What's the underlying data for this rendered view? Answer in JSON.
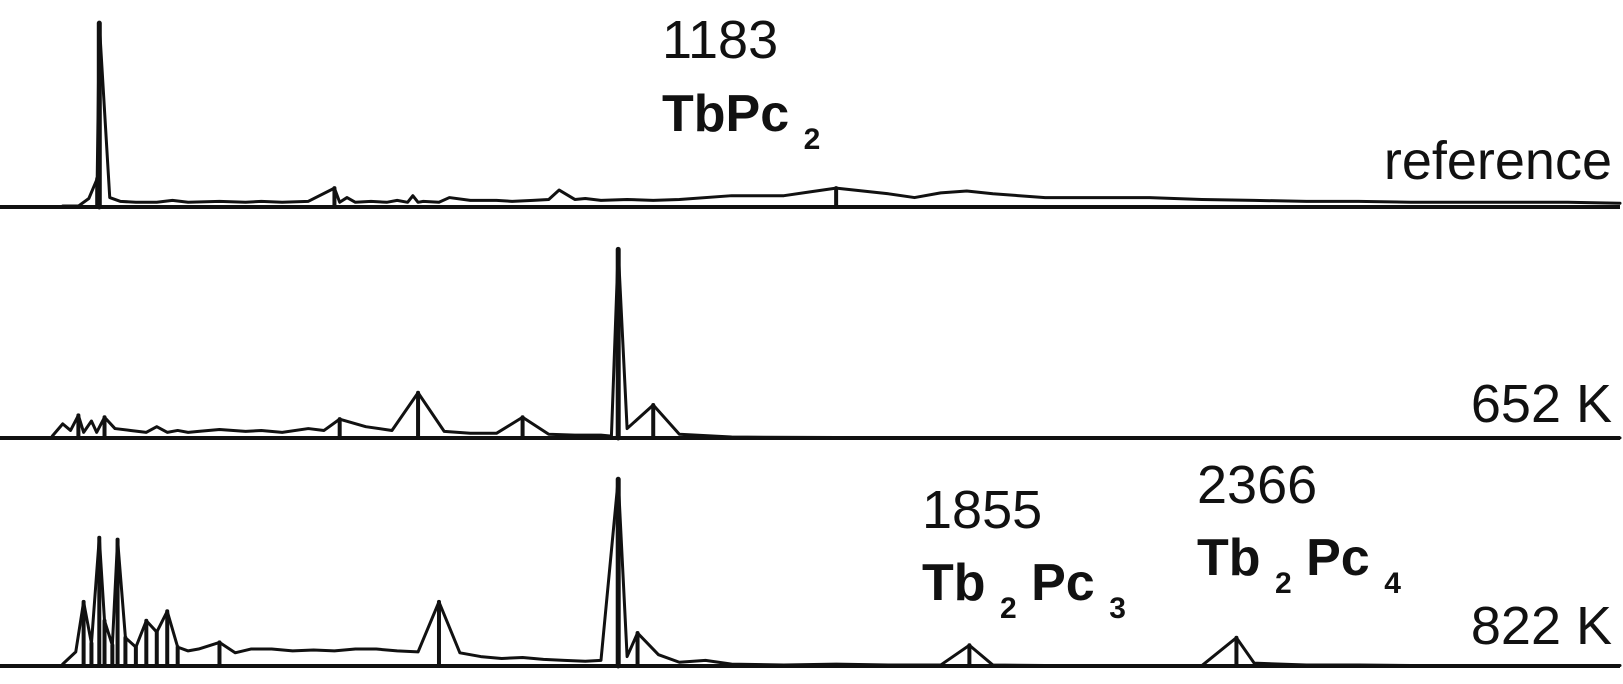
{
  "chart_data": [
    {
      "type": "line",
      "series": [
        {
          "name": "reference",
          "x": [
            120,
            150,
            170,
            186,
            190,
            210,
            230,
            260,
            300,
            330,
            360,
            420,
            470,
            500,
            540,
            590,
            640,
            650,
            664,
            680,
            710,
            740,
            760,
            780,
            790,
            800,
            810,
            840,
            860,
            900,
            950,
            980,
            1020,
            1050,
            1070,
            1100,
            1120,
            1150,
            1200,
            1250,
            1300,
            1400,
            1500,
            1550,
            1600,
            1700,
            1750,
            1800,
            1850,
            1900,
            2000,
            2100,
            2200,
            2300,
            2400,
            2500,
            2600,
            2700,
            2800,
            2900,
            3000,
            3100
          ],
          "y": [
            0.1,
            0.1,
            0.9,
            3.0,
            19.5,
            1.0,
            0.6,
            0.5,
            0.5,
            0.7,
            0.5,
            0.6,
            0.5,
            0.6,
            0.5,
            0.6,
            2.0,
            0.5,
            1.0,
            0.5,
            0.6,
            0.5,
            0.7,
            0.5,
            1.2,
            0.5,
            0.6,
            0.5,
            1.0,
            0.7,
            0.7,
            0.6,
            0.7,
            0.8,
            1.8,
            0.8,
            0.9,
            0.7,
            0.8,
            0.7,
            0.8,
            1.2,
            1.2,
            1.6,
            2.0,
            1.4,
            1.0,
            1.5,
            1.7,
            1.4,
            1.0,
            1.0,
            1.0,
            0.8,
            0.7,
            0.6,
            0.6,
            0.5,
            0.5,
            0.5,
            0.5,
            0.4
          ]
        },
        {
          "name": "652 K",
          "x": [
            100,
            120,
            135,
            150,
            160,
            175,
            185,
            200,
            220,
            250,
            280,
            300,
            320,
            340,
            360,
            380,
            420,
            470,
            500,
            540,
            590,
            620,
            650,
            700,
            750,
            800,
            850,
            900,
            950,
            1000,
            1050,
            1100,
            1150,
            1170,
            1183,
            1200,
            1250,
            1300,
            1400,
            1600,
            1800,
            2000,
            2200,
            2400,
            2600,
            2800,
            3000,
            3100
          ],
          "y": [
            0.2,
            1.5,
            0.8,
            2.4,
            0.6,
            1.8,
            0.6,
            2.2,
            1.0,
            0.8,
            0.6,
            1.2,
            0.6,
            0.8,
            0.6,
            0.7,
            0.9,
            0.7,
            0.8,
            0.6,
            1.0,
            0.8,
            2.0,
            1.2,
            0.8,
            4.8,
            0.7,
            0.5,
            0.5,
            2.2,
            0.4,
            0.3,
            0.3,
            0.2,
            20.0,
            1.0,
            3.5,
            0.4,
            0.1,
            0.05,
            0.03,
            0.02,
            0.02,
            0.02,
            0.01,
            0.01,
            0.01,
            0.01
          ]
        },
        {
          "name": "822 K",
          "x": [
            120,
            145,
            160,
            175,
            190,
            200,
            215,
            225,
            240,
            260,
            280,
            300,
            320,
            340,
            360,
            380,
            420,
            450,
            480,
            520,
            560,
            600,
            640,
            680,
            720,
            760,
            800,
            840,
            880,
            920,
            960,
            1000,
            1040,
            1080,
            1120,
            1150,
            1183,
            1200,
            1220,
            1260,
            1300,
            1350,
            1400,
            1500,
            1600,
            1700,
            1800,
            1855,
            1900,
            2000,
            2100,
            2200,
            2300,
            2366,
            2400,
            2500,
            2600,
            2700,
            2800,
            2900,
            3000,
            3100
          ],
          "y": [
            0.2,
            1.5,
            6.8,
            2.4,
            13.6,
            4.8,
            2.2,
            13.4,
            3.0,
            2.0,
            4.8,
            3.6,
            5.8,
            2.0,
            1.6,
            1.8,
            2.5,
            1.4,
            1.8,
            1.8,
            1.6,
            1.7,
            1.6,
            1.8,
            1.8,
            1.6,
            1.5,
            6.8,
            1.4,
            1.0,
            0.8,
            0.9,
            0.7,
            0.6,
            0.5,
            0.6,
            19.8,
            1.0,
            3.5,
            1.2,
            0.4,
            0.6,
            0.2,
            0.1,
            0.2,
            0.1,
            0.1,
            2.2,
            0.1,
            0.05,
            0.05,
            0.05,
            0.05,
            3.0,
            0.3,
            0.1,
            0.1,
            0.05,
            0.05,
            0.05,
            0.05,
            0.05
          ]
        }
      ],
      "panels": [
        "reference",
        "652 K",
        "822 K"
      ],
      "xlim": [
        0,
        3100
      ],
      "ylim": [
        0,
        21
      ],
      "grid": false,
      "annotations": [
        {
          "text": "1183",
          "formula_parts": [
            "TbPc",
            "2"
          ],
          "panel": "reference",
          "x": 1183
        },
        {
          "text": "1855",
          "formula_parts": [
            "Tb",
            "2",
            "Pc",
            "3"
          ],
          "panel": "822 K",
          "x": 1855
        },
        {
          "text": "2366",
          "formula_parts": [
            "Tb",
            "2",
            "Pc",
            "4"
          ],
          "panel": "822 K",
          "x": 2366
        }
      ],
      "title": "",
      "xlabel": "",
      "ylabel": ""
    }
  ]
}
